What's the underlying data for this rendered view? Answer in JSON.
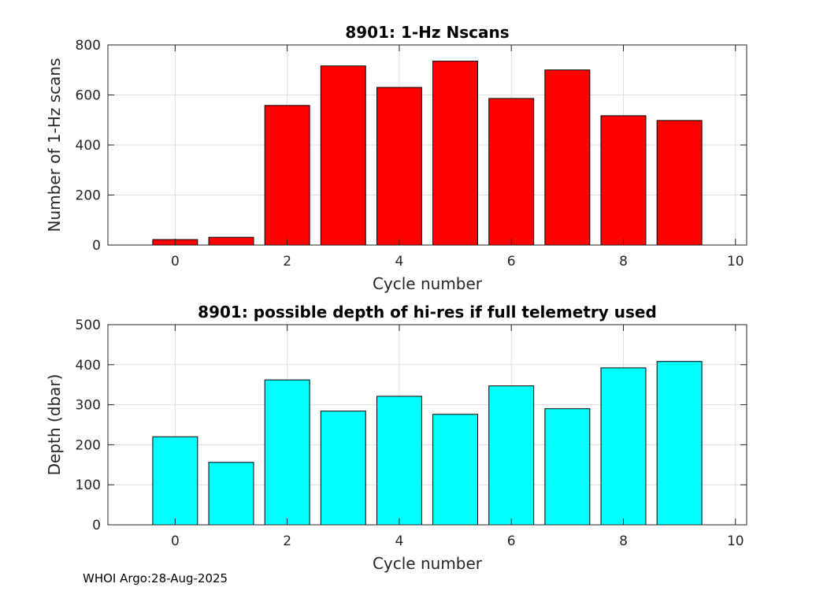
{
  "chart_data": [
    {
      "type": "bar",
      "title": "8901: 1-Hz Nscans",
      "xlabel": "Cycle number",
      "ylabel": "Number of 1-Hz scans",
      "x": [
        0,
        1,
        2,
        3,
        4,
        5,
        6,
        7,
        8,
        9
      ],
      "values": [
        22,
        31,
        558,
        716,
        630,
        735,
        586,
        700,
        517,
        498
      ],
      "xlim": [
        -1.2,
        10.2
      ],
      "ylim": [
        0,
        800
      ],
      "xticks": [
        0,
        2,
        4,
        6,
        8,
        10
      ],
      "yticks": [
        0,
        200,
        400,
        600,
        800
      ],
      "grid": true,
      "bar_color": "#ff0000"
    },
    {
      "type": "bar",
      "title": "8901: possible depth of hi-res if full telemetry used",
      "xlabel": "Cycle number",
      "ylabel": "Depth (dbar)",
      "x": [
        0,
        1,
        2,
        3,
        4,
        5,
        6,
        7,
        8,
        9
      ],
      "values": [
        220,
        156,
        362,
        284,
        321,
        276,
        347,
        290,
        392,
        408
      ],
      "xlim": [
        -1.2,
        10.2
      ],
      "ylim": [
        0,
        500
      ],
      "xticks": [
        0,
        2,
        4,
        6,
        8,
        10
      ],
      "yticks": [
        0,
        100,
        200,
        300,
        400,
        500
      ],
      "grid": true,
      "bar_color": "#00ffff"
    }
  ],
  "footer": "WHOI Argo:28-Aug-2025"
}
